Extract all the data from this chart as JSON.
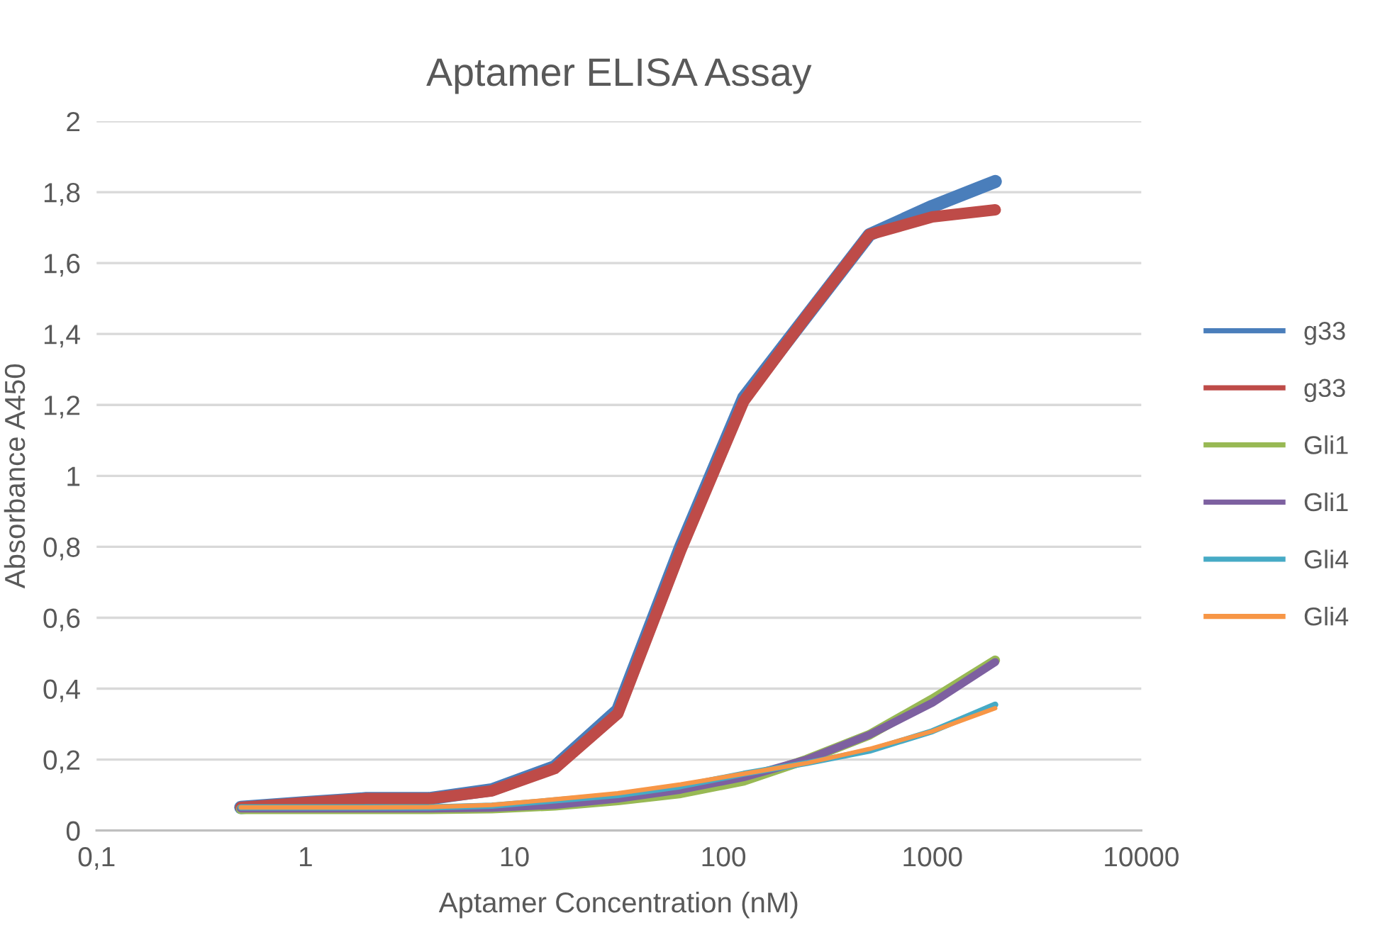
{
  "chart_data": {
    "type": "line",
    "title": "Aptamer ELISA Assay",
    "xlabel": "Aptamer Concentration (nM)",
    "ylabel": "Absorbance A450",
    "log": "x",
    "grid": "y",
    "legend": "right",
    "marker": "none",
    "line_style": "solid",
    "x": [
      0.49,
      0.98,
      1.95,
      3.9,
      7.8,
      15.6,
      31.25,
      62.5,
      125,
      250,
      500,
      1000,
      2000
    ],
    "xlim": [
      0.1,
      10000
    ],
    "xticks": [
      {
        "value": 0.1,
        "label": "0,1"
      },
      1,
      10,
      100,
      1000,
      10000
    ],
    "ylim": [
      0,
      2
    ],
    "yticks": [
      0,
      {
        "value": 0.2,
        "label": "0,2"
      },
      {
        "value": 0.4,
        "label": "0,4"
      },
      {
        "value": 0.6,
        "label": "0,6"
      },
      {
        "value": 0.8,
        "label": "0,8"
      },
      1,
      {
        "value": 1.2,
        "label": "1,2"
      },
      {
        "value": 1.4,
        "label": "1,4"
      },
      {
        "value": 1.6,
        "label": "1,6"
      },
      {
        "value": 1.8,
        "label": "1,8"
      },
      2
    ],
    "series": [
      {
        "name": "g33",
        "color": "#4a7ebb",
        "values": [
          0.065,
          0.078,
          0.09,
          0.09,
          0.115,
          0.18,
          0.34,
          0.8,
          1.22,
          1.45,
          1.68,
          1.76,
          1.83
        ]
      },
      {
        "name": "g33",
        "color": "#be4b48",
        "values": [
          0.065,
          0.078,
          0.09,
          0.09,
          0.112,
          0.175,
          0.33,
          0.79,
          1.21,
          1.45,
          1.68,
          1.73,
          1.75
        ]
      },
      {
        "name": "Gli1",
        "color": "#98b954",
        "values": [
          0.06,
          0.06,
          0.06,
          0.06,
          0.062,
          0.07,
          0.085,
          0.105,
          0.14,
          0.2,
          0.27,
          0.37,
          0.48
        ]
      },
      {
        "name": "Gli1",
        "color": "#7d60a0",
        "values": [
          0.062,
          0.062,
          0.062,
          0.062,
          0.064,
          0.072,
          0.09,
          0.115,
          0.15,
          0.2,
          0.27,
          0.36,
          0.475
        ]
      },
      {
        "name": "Gli4",
        "color": "#46aac5",
        "values": [
          0.065,
          0.065,
          0.065,
          0.065,
          0.07,
          0.085,
          0.1,
          0.125,
          0.16,
          0.19,
          0.225,
          0.28,
          0.355
        ]
      },
      {
        "name": "Gli4",
        "color": "#f79646",
        "values": [
          0.065,
          0.065,
          0.065,
          0.066,
          0.072,
          0.088,
          0.105,
          0.13,
          0.16,
          0.19,
          0.23,
          0.28,
          0.345
        ]
      }
    ]
  }
}
